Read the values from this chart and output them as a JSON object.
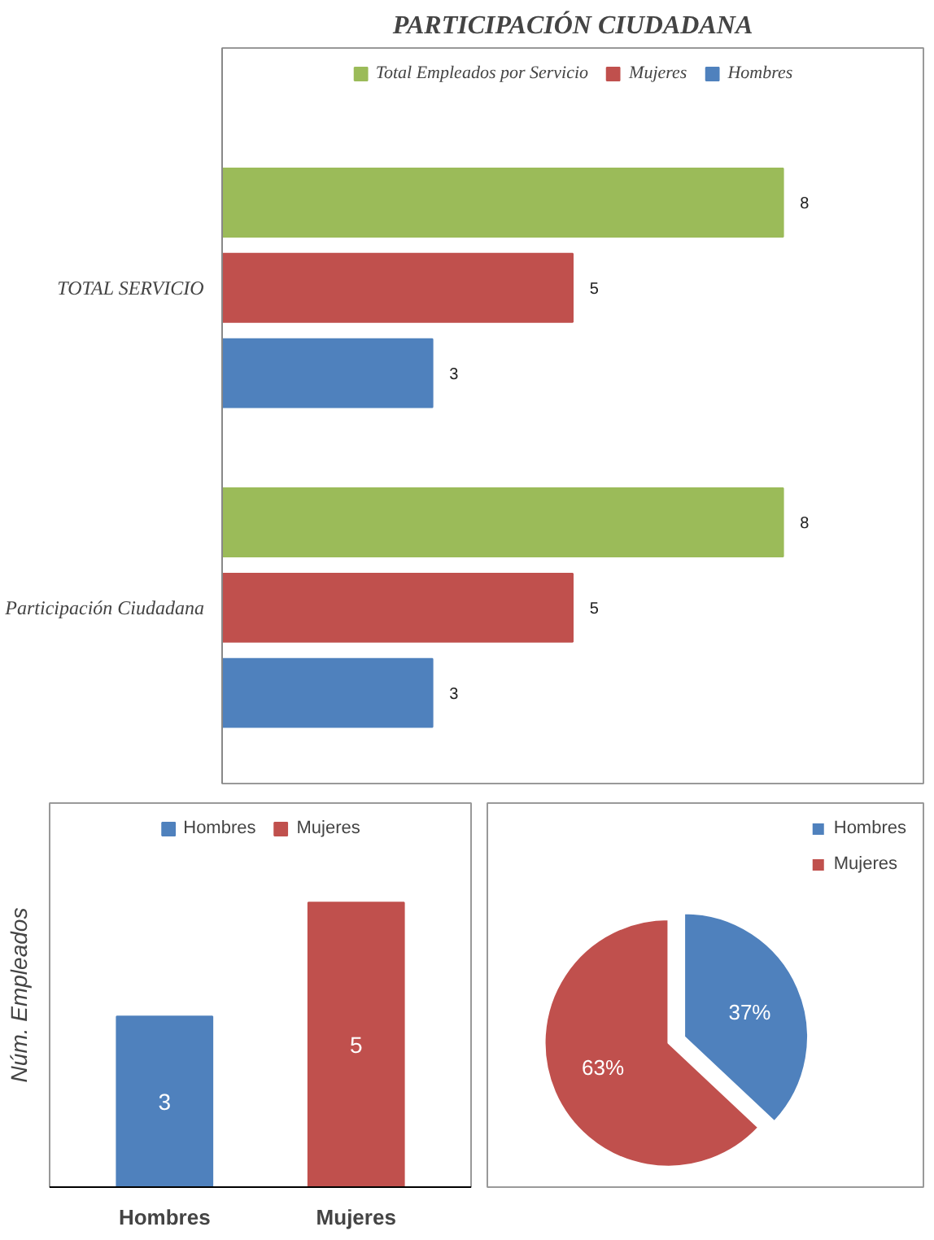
{
  "chart_data": [
    {
      "type": "bar",
      "orientation": "horizontal",
      "title": "PARTICIPACIÓN CIUDADANA",
      "categories": [
        "TOTAL SERVICIO",
        "Participación Ciudadana"
      ],
      "stacked": false,
      "series": [
        {
          "name": "Hombres",
          "color": "#4f81bd",
          "values": [
            3,
            3
          ]
        },
        {
          "name": "Mujeres",
          "color": "#c0504d",
          "values": [
            5,
            5
          ]
        },
        {
          "name": "Total Empleados por Servicio",
          "color": "#9bbb59",
          "values": [
            8,
            8
          ]
        }
      ],
      "data_labels": true,
      "legend": "top",
      "grid": false
    },
    {
      "type": "bar",
      "categories": [
        "Hombres",
        "Mujeres"
      ],
      "series": [
        {
          "name": "Hombres",
          "color": "#4f81bd",
          "values": [
            3,
            null
          ]
        },
        {
          "name": "Mujeres",
          "color": "#c0504d",
          "values": [
            null,
            5
          ]
        }
      ],
      "ylabel": "Núm. Empleados",
      "data_labels": true,
      "legend": "top",
      "grid": false
    },
    {
      "type": "pie",
      "categories": [
        "Hombres",
        "Mujeres"
      ],
      "values": [
        37,
        63
      ],
      "colors": [
        "#4f81bd",
        "#c0504d"
      ],
      "value_labels": [
        "37%",
        "63%"
      ],
      "legend": "top right"
    }
  ]
}
